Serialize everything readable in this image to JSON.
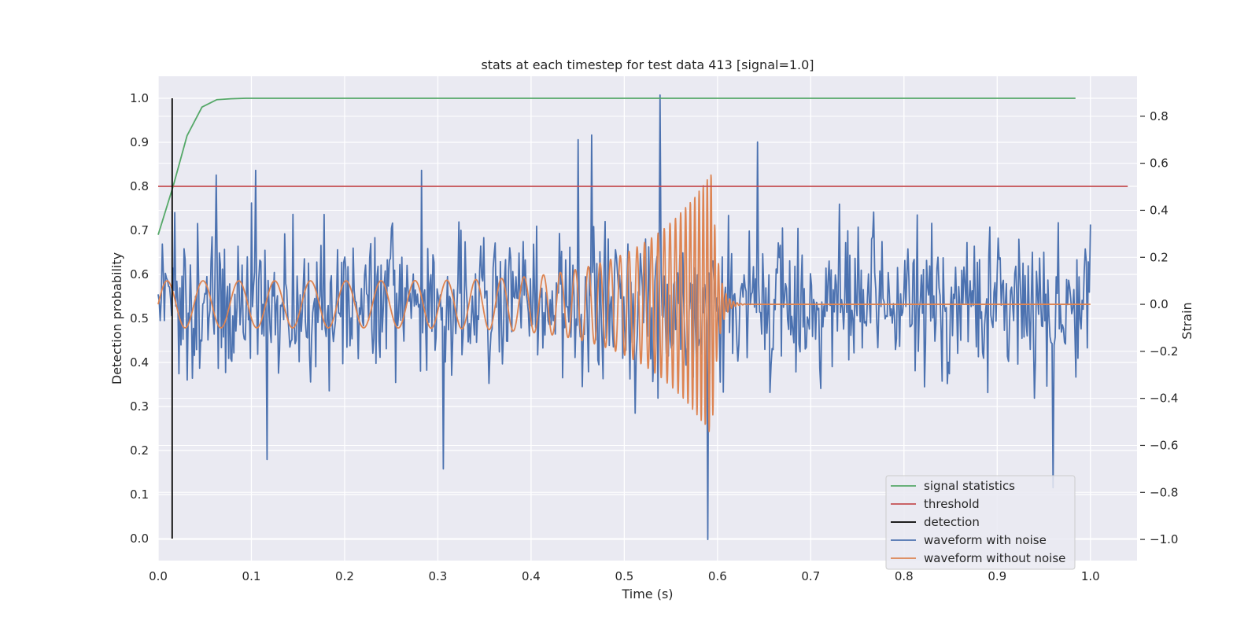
{
  "chart_data": {
    "type": "line",
    "title": "stats at each timestep for test data 413 [signal=1.0]",
    "xlabel": "Time (s)",
    "ylabel": "Detection probability",
    "y2label": "Strain",
    "xlim": [
      0.0,
      1.05
    ],
    "ylim": [
      -0.05,
      1.05
    ],
    "y2lim": [
      -1.09,
      0.97
    ],
    "xticks": [
      "0.0",
      "0.1",
      "0.2",
      "0.3",
      "0.4",
      "0.5",
      "0.6",
      "0.7",
      "0.8",
      "0.9",
      "1.0"
    ],
    "yticks": [
      "0.0",
      "0.1",
      "0.2",
      "0.3",
      "0.4",
      "0.5",
      "0.6",
      "0.7",
      "0.8",
      "0.9",
      "1.0"
    ],
    "y2ticks": [
      "−1.0",
      "−0.8",
      "−0.6",
      "−0.4",
      "−0.2",
      "0.0",
      "0.2",
      "0.4",
      "0.6",
      "0.8"
    ],
    "grid": true,
    "legend_position": "bottom-right",
    "legend": [
      "signal statistics",
      "threshold",
      "detection",
      "waveform with noise",
      "waveform without noise"
    ],
    "colors": {
      "signal_statistics": "#55a868",
      "threshold": "#c44e52",
      "detection": "#000000",
      "waveform_with_noise": "#4c72b0",
      "waveform_without_noise": "#dd8452",
      "plot_background": "#eaeaf2",
      "grid": "#ffffff"
    },
    "series": [
      {
        "name": "signal statistics",
        "axis": "left",
        "x": [
          0.0,
          0.016,
          0.031,
          0.047,
          0.063,
          0.078,
          0.094,
          0.11,
          0.125,
          0.2,
          0.4,
          0.6,
          0.8,
          0.984
        ],
        "y": [
          0.69,
          0.8,
          0.915,
          0.98,
          0.997,
          0.999,
          1.0,
          1.0,
          1.0,
          1.0,
          1.0,
          1.0,
          1.0,
          1.0
        ]
      },
      {
        "name": "threshold",
        "axis": "left",
        "x": [
          0.0,
          1.04
        ],
        "y": [
          0.8,
          0.8
        ]
      },
      {
        "name": "detection",
        "axis": "left",
        "x": [
          0.015,
          0.015
        ],
        "y": [
          0.0,
          1.0
        ]
      },
      {
        "name": "waveform with noise",
        "axis": "right",
        "note": "broadband noise-dominated strain, approx. uniform amplitude about ±0.35 with spikes",
        "x_range": [
          0.0,
          1.0
        ],
        "samples": 900,
        "amplitude": 0.22,
        "peaks": [
          {
            "x": 0.018,
            "y": 0.39
          },
          {
            "x": 0.062,
            "y": 0.55
          },
          {
            "x": 0.105,
            "y": 0.57
          },
          {
            "x": 0.117,
            "y": -0.66
          },
          {
            "x": 0.282,
            "y": 0.57
          },
          {
            "x": 0.306,
            "y": -0.7
          },
          {
            "x": 0.45,
            "y": 0.7
          },
          {
            "x": 0.465,
            "y": 0.72
          },
          {
            "x": 0.538,
            "y": 0.89
          },
          {
            "x": 0.59,
            "y": -1.0
          },
          {
            "x": 0.643,
            "y": 0.69
          },
          {
            "x": 0.96,
            "y": -0.78
          }
        ]
      },
      {
        "name": "waveform without noise",
        "axis": "right",
        "note": "chirp: sinusoid with increasing frequency and amplitude, merger near 0.594 s then ringdown to 0",
        "t_merger": 0.594,
        "start_amplitude": 0.1,
        "peak_amplitude": 0.56,
        "start_cycles_per_sec": 26,
        "peak_cycles_per_sec": 250,
        "ringdown_end": 0.64
      }
    ]
  }
}
